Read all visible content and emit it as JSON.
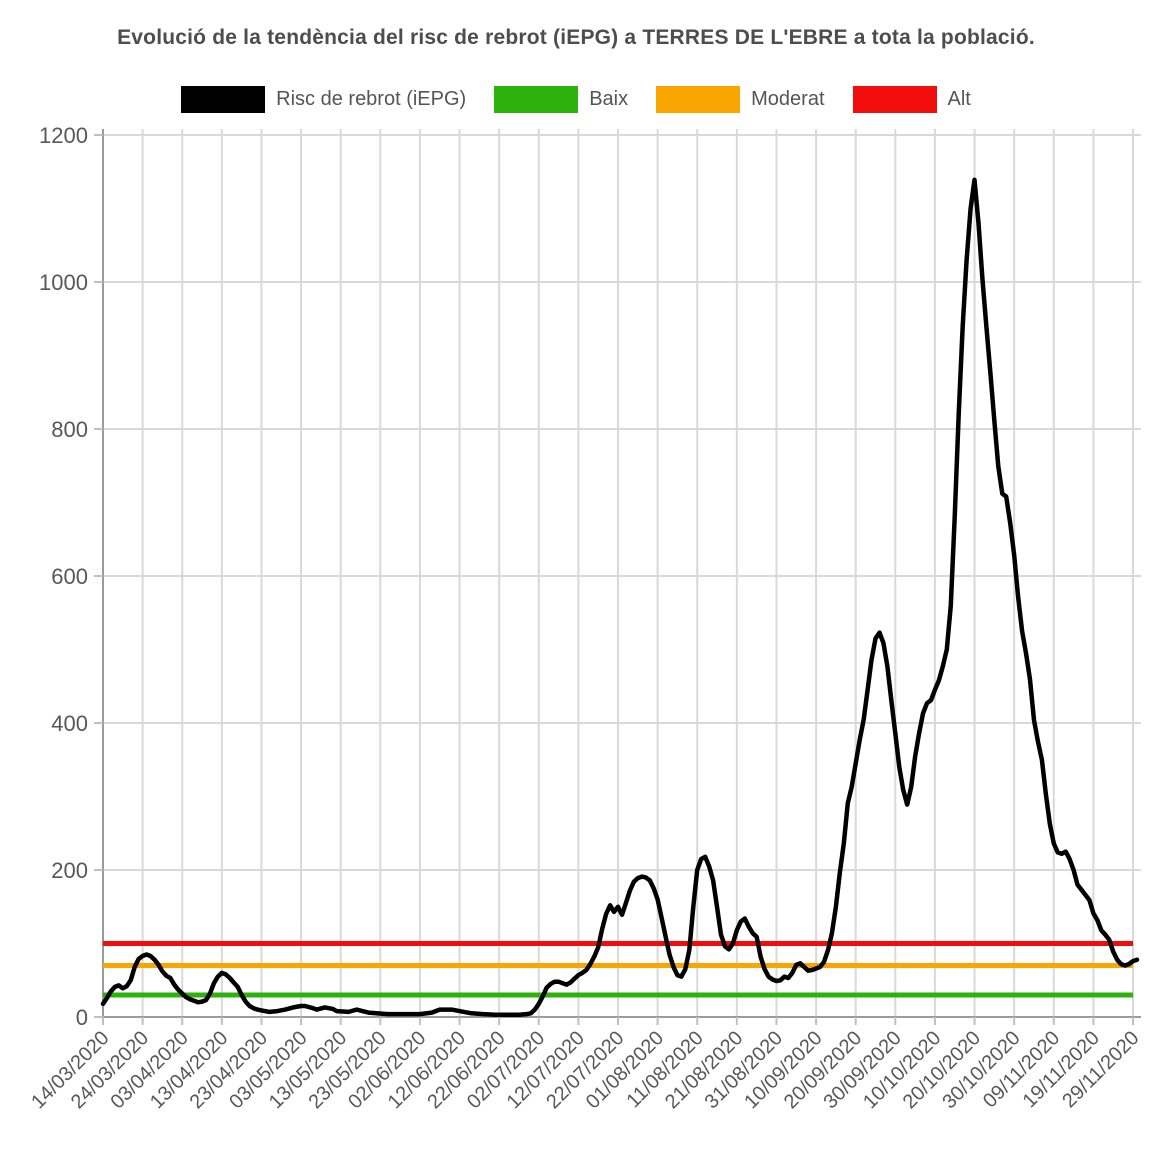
{
  "chart_data": {
    "type": "line",
    "title": "Evolució de la tendència del risc de rebrot (iEPG) a TERRES DE L'EBRE a tota la població.",
    "grid": true,
    "legend_position": "top",
    "legend": [
      {
        "label": "Risc de rebrot (iEPG)",
        "color": "#000000"
      },
      {
        "label": "Baix",
        "color": "#2db10c"
      },
      {
        "label": "Moderat",
        "color": "#f9a602"
      },
      {
        "label": "Alt",
        "color": "#f20d0d"
      }
    ],
    "ylim": [
      0,
      1200
    ],
    "y_ticks": [
      0,
      200,
      400,
      600,
      800,
      1000,
      1200
    ],
    "x_tick_labels": [
      "14/03/2020",
      "24/03/2020",
      "03/04/2020",
      "13/04/2020",
      "23/04/2020",
      "03/05/2020",
      "13/05/2020",
      "23/05/2020",
      "02/06/2020",
      "12/06/2020",
      "22/06/2020",
      "02/07/2020",
      "12/07/2020",
      "22/07/2020",
      "01/08/2020",
      "11/08/2020",
      "21/08/2020",
      "31/08/2020",
      "10/09/2020",
      "20/09/2020",
      "30/09/2020",
      "10/10/2020",
      "20/10/2020",
      "30/10/2020",
      "09/11/2020",
      "19/11/2020",
      "29/11/2020"
    ],
    "thresholds": [
      {
        "name": "Baix",
        "value": 30,
        "color": "#2db10c"
      },
      {
        "name": "Moderat",
        "value": 70,
        "color": "#f9a602"
      },
      {
        "name": "Alt",
        "value": 100,
        "color": "#f20d0d"
      }
    ],
    "series": [
      {
        "name": "Risc de rebrot (iEPG)",
        "color": "#000000",
        "points": [
          [
            "14/03/2020",
            18
          ],
          [
            "15/03/2020",
            26
          ],
          [
            "16/03/2020",
            35
          ],
          [
            "17/03/2020",
            41
          ],
          [
            "18/03/2020",
            43
          ],
          [
            "19/03/2020",
            39
          ],
          [
            "20/03/2020",
            42
          ],
          [
            "21/03/2020",
            50
          ],
          [
            "22/03/2020",
            68
          ],
          [
            "23/03/2020",
            79
          ],
          [
            "24/03/2020",
            83
          ],
          [
            "25/03/2020",
            85
          ],
          [
            "26/03/2020",
            83
          ],
          [
            "27/03/2020",
            78
          ],
          [
            "28/03/2020",
            71
          ],
          [
            "29/03/2020",
            62
          ],
          [
            "30/03/2020",
            56
          ],
          [
            "31/03/2020",
            53
          ],
          [
            "01/04/2020",
            44
          ],
          [
            "02/04/2020",
            37
          ],
          [
            "03/04/2020",
            32
          ],
          [
            "04/04/2020",
            27
          ],
          [
            "05/04/2020",
            24
          ],
          [
            "06/04/2020",
            22
          ],
          [
            "07/04/2020",
            20
          ],
          [
            "08/04/2020",
            21
          ],
          [
            "09/04/2020",
            23
          ],
          [
            "10/04/2020",
            32
          ],
          [
            "11/04/2020",
            46
          ],
          [
            "12/04/2020",
            55
          ],
          [
            "13/04/2020",
            60
          ],
          [
            "14/04/2020",
            58
          ],
          [
            "15/04/2020",
            53
          ],
          [
            "16/04/2020",
            47
          ],
          [
            "17/04/2020",
            41
          ],
          [
            "18/04/2020",
            30
          ],
          [
            "19/04/2020",
            21
          ],
          [
            "20/04/2020",
            15
          ],
          [
            "21/04/2020",
            12
          ],
          [
            "22/04/2020",
            10
          ],
          [
            "23/04/2020",
            9
          ],
          [
            "25/04/2020",
            7
          ],
          [
            "27/04/2020",
            8
          ],
          [
            "29/04/2020",
            10
          ],
          [
            "01/05/2020",
            13
          ],
          [
            "03/05/2020",
            15
          ],
          [
            "04/05/2020",
            15
          ],
          [
            "06/05/2020",
            12
          ],
          [
            "07/05/2020",
            10
          ],
          [
            "09/05/2020",
            13
          ],
          [
            "11/05/2020",
            11
          ],
          [
            "12/05/2020",
            8
          ],
          [
            "15/05/2020",
            7
          ],
          [
            "17/05/2020",
            10
          ],
          [
            "20/05/2020",
            6
          ],
          [
            "22/05/2020",
            5
          ],
          [
            "25/05/2020",
            4
          ],
          [
            "28/05/2020",
            4
          ],
          [
            "31/05/2020",
            4
          ],
          [
            "02/06/2020",
            4
          ],
          [
            "05/06/2020",
            6
          ],
          [
            "07/06/2020",
            10
          ],
          [
            "10/06/2020",
            10
          ],
          [
            "12/06/2020",
            8
          ],
          [
            "15/06/2020",
            5
          ],
          [
            "18/06/2020",
            4
          ],
          [
            "21/06/2020",
            3
          ],
          [
            "24/06/2020",
            3
          ],
          [
            "27/06/2020",
            3
          ],
          [
            "29/06/2020",
            4
          ],
          [
            "30/06/2020",
            5
          ],
          [
            "01/07/2020",
            10
          ],
          [
            "02/07/2020",
            18
          ],
          [
            "03/07/2020",
            28
          ],
          [
            "04/07/2020",
            40
          ],
          [
            "05/07/2020",
            45
          ],
          [
            "06/07/2020",
            48
          ],
          [
            "07/07/2020",
            48
          ],
          [
            "08/07/2020",
            46
          ],
          [
            "09/07/2020",
            44
          ],
          [
            "10/07/2020",
            47
          ],
          [
            "11/07/2020",
            52
          ],
          [
            "12/07/2020",
            57
          ],
          [
            "13/07/2020",
            60
          ],
          [
            "14/07/2020",
            64
          ],
          [
            "15/07/2020",
            72
          ],
          [
            "16/07/2020",
            82
          ],
          [
            "17/07/2020",
            95
          ],
          [
            "18/07/2020",
            120
          ],
          [
            "19/07/2020",
            140
          ],
          [
            "20/07/2020",
            152
          ],
          [
            "21/07/2020",
            143
          ],
          [
            "22/07/2020",
            150
          ],
          [
            "23/07/2020",
            139
          ],
          [
            "24/07/2020",
            155
          ],
          [
            "25/07/2020",
            172
          ],
          [
            "26/07/2020",
            184
          ],
          [
            "27/07/2020",
            189
          ],
          [
            "28/07/2020",
            191
          ],
          [
            "29/07/2020",
            190
          ],
          [
            "30/07/2020",
            186
          ],
          [
            "31/07/2020",
            175
          ],
          [
            "01/08/2020",
            160
          ],
          [
            "02/08/2020",
            135
          ],
          [
            "03/08/2020",
            110
          ],
          [
            "04/08/2020",
            85
          ],
          [
            "05/08/2020",
            68
          ],
          [
            "06/08/2020",
            57
          ],
          [
            "07/08/2020",
            55
          ],
          [
            "08/08/2020",
            65
          ],
          [
            "09/08/2020",
            91
          ],
          [
            "10/08/2020",
            150
          ],
          [
            "11/08/2020",
            200
          ],
          [
            "12/08/2020",
            215
          ],
          [
            "13/08/2020",
            218
          ],
          [
            "14/08/2020",
            205
          ],
          [
            "15/08/2020",
            186
          ],
          [
            "16/08/2020",
            150
          ],
          [
            "17/08/2020",
            112
          ],
          [
            "18/08/2020",
            96
          ],
          [
            "19/08/2020",
            92
          ],
          [
            "20/08/2020",
            100
          ],
          [
            "21/08/2020",
            118
          ],
          [
            "22/08/2020",
            130
          ],
          [
            "23/08/2020",
            134
          ],
          [
            "24/08/2020",
            123
          ],
          [
            "25/08/2020",
            114
          ],
          [
            "26/08/2020",
            109
          ],
          [
            "27/08/2020",
            82
          ],
          [
            "28/08/2020",
            65
          ],
          [
            "29/08/2020",
            55
          ],
          [
            "30/08/2020",
            51
          ],
          [
            "31/08/2020",
            49
          ],
          [
            "01/09/2020",
            50
          ],
          [
            "02/09/2020",
            55
          ],
          [
            "03/09/2020",
            53
          ],
          [
            "04/09/2020",
            60
          ],
          [
            "05/09/2020",
            71
          ],
          [
            "06/09/2020",
            73
          ],
          [
            "07/09/2020",
            68
          ],
          [
            "08/09/2020",
            63
          ],
          [
            "09/09/2020",
            64
          ],
          [
            "10/09/2020",
            66
          ],
          [
            "11/09/2020",
            68
          ],
          [
            "12/09/2020",
            75
          ],
          [
            "13/09/2020",
            91
          ],
          [
            "14/09/2020",
            114
          ],
          [
            "15/09/2020",
            150
          ],
          [
            "16/09/2020",
            196
          ],
          [
            "17/09/2020",
            236
          ],
          [
            "18/09/2020",
            291
          ],
          [
            "19/09/2020",
            313
          ],
          [
            "20/09/2020",
            345
          ],
          [
            "21/09/2020",
            377
          ],
          [
            "22/09/2020",
            404
          ],
          [
            "23/09/2020",
            445
          ],
          [
            "24/09/2020",
            486
          ],
          [
            "25/09/2020",
            515
          ],
          [
            "26/09/2020",
            523
          ],
          [
            "27/09/2020",
            509
          ],
          [
            "28/09/2020",
            477
          ],
          [
            "29/09/2020",
            431
          ],
          [
            "30/09/2020",
            386
          ],
          [
            "01/10/2020",
            340
          ],
          [
            "02/10/2020",
            309
          ],
          [
            "03/10/2020",
            289
          ],
          [
            "04/10/2020",
            313
          ],
          [
            "05/10/2020",
            354
          ],
          [
            "06/10/2020",
            386
          ],
          [
            "07/10/2020",
            413
          ],
          [
            "08/10/2020",
            427
          ],
          [
            "09/10/2020",
            431
          ],
          [
            "10/10/2020",
            445
          ],
          [
            "11/10/2020",
            458
          ],
          [
            "12/10/2020",
            477
          ],
          [
            "13/10/2020",
            500
          ],
          [
            "14/10/2020",
            560
          ],
          [
            "15/10/2020",
            680
          ],
          [
            "16/10/2020",
            820
          ],
          [
            "17/10/2020",
            940
          ],
          [
            "18/10/2020",
            1030
          ],
          [
            "19/10/2020",
            1100
          ],
          [
            "20/10/2020",
            1139
          ],
          [
            "21/10/2020",
            1080
          ],
          [
            "22/10/2020",
            1003
          ],
          [
            "23/10/2020",
            939
          ],
          [
            "24/10/2020",
            876
          ],
          [
            "25/10/2020",
            812
          ],
          [
            "26/10/2020",
            749
          ],
          [
            "27/10/2020",
            712
          ],
          [
            "28/10/2020",
            708
          ],
          [
            "29/10/2020",
            672
          ],
          [
            "30/10/2020",
            628
          ],
          [
            "31/10/2020",
            572
          ],
          [
            "01/11/2020",
            525
          ],
          [
            "02/11/2020",
            495
          ],
          [
            "03/11/2020",
            459
          ],
          [
            "04/11/2020",
            404
          ],
          [
            "05/11/2020",
            375
          ],
          [
            "06/11/2020",
            350
          ],
          [
            "07/11/2020",
            304
          ],
          [
            "08/11/2020",
            263
          ],
          [
            "09/11/2020",
            236
          ],
          [
            "10/11/2020",
            224
          ],
          [
            "11/11/2020",
            222
          ],
          [
            "12/11/2020",
            225
          ],
          [
            "13/11/2020",
            215
          ],
          [
            "14/11/2020",
            200
          ],
          [
            "15/11/2020",
            180
          ],
          [
            "16/11/2020",
            173
          ],
          [
            "17/11/2020",
            166
          ],
          [
            "18/11/2020",
            159
          ],
          [
            "19/11/2020",
            141
          ],
          [
            "20/11/2020",
            132
          ],
          [
            "21/11/2020",
            118
          ],
          [
            "22/11/2020",
            112
          ],
          [
            "23/11/2020",
            105
          ],
          [
            "24/11/2020",
            89
          ],
          [
            "25/11/2020",
            78
          ],
          [
            "26/11/2020",
            72
          ],
          [
            "27/11/2020",
            70
          ],
          [
            "28/11/2020",
            72
          ],
          [
            "29/11/2020",
            76
          ],
          [
            "30/11/2020",
            78
          ]
        ]
      }
    ],
    "axis_colors": {
      "grid": "#d9d9d9",
      "axis": "#9b9b9b",
      "tick": "#c0c0c0",
      "label": "#585858"
    }
  }
}
